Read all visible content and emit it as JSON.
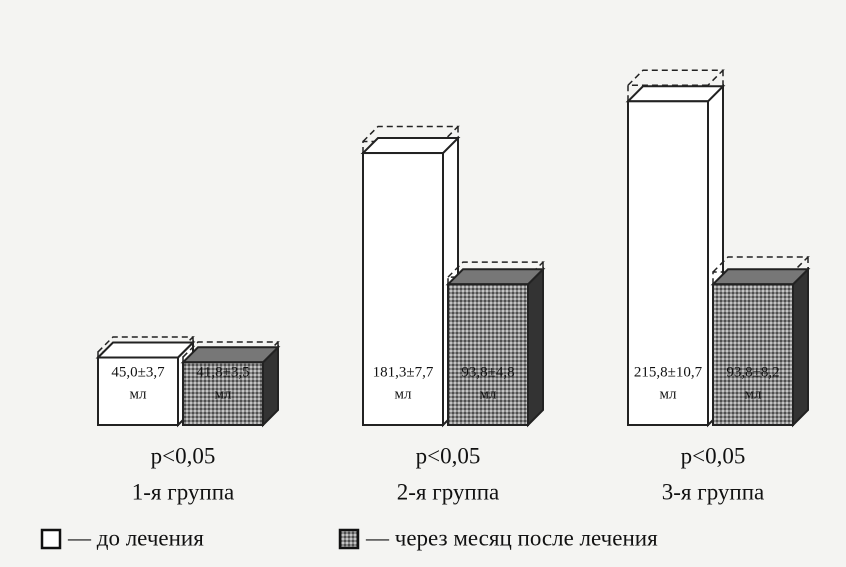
{
  "chart_data": {
    "type": "bar3d",
    "categories": [
      "1-я группа",
      "2-я группа",
      "3-я группа"
    ],
    "annotations": [
      "p<0,05",
      "p<0,05",
      "p<0,05"
    ],
    "unit": "мл",
    "series": [
      {
        "name": "— до лечения",
        "color": "#ffffff",
        "values": [
          45.0,
          181.3,
          215.8
        ],
        "errors": [
          3.7,
          7.7,
          10.7
        ],
        "value_labels": [
          "45,0±3,7",
          "181,3±7,7",
          "215,8±10,7"
        ]
      },
      {
        "name": "— через месяц после лечения",
        "color": "#8a8a8a",
        "values": [
          41.8,
          93.8,
          93.8
        ],
        "errors": [
          3.5,
          4.8,
          8.2
        ],
        "value_labels": [
          "41,8±3,5",
          "93,8±4,8",
          "93,8±8,2"
        ]
      }
    ]
  }
}
